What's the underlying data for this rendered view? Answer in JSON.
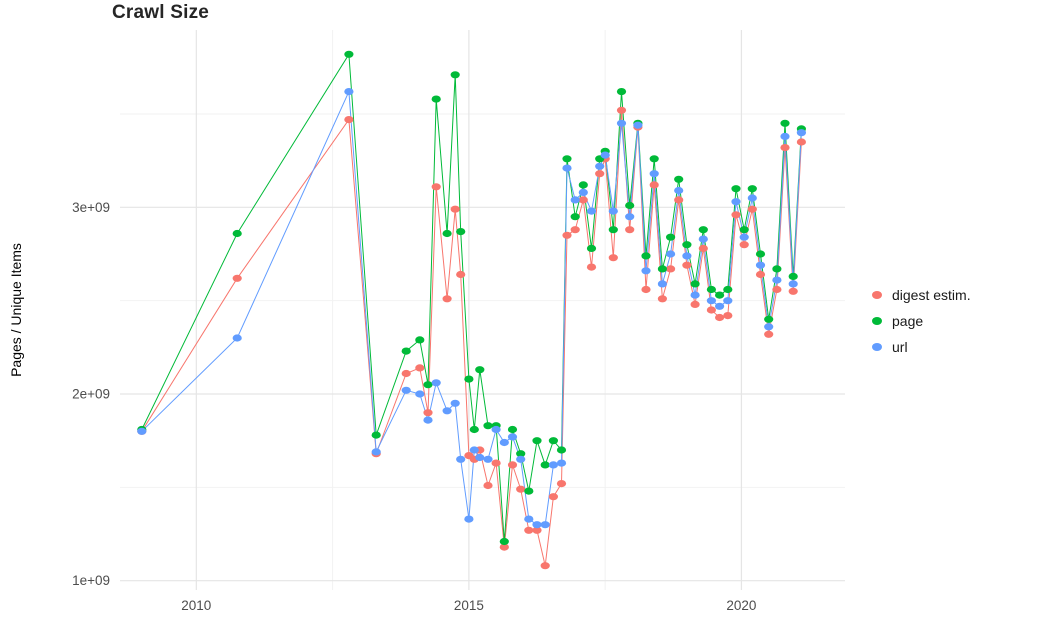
{
  "chart_data": {
    "type": "scatter",
    "title": "Crawl Size",
    "xlabel": "",
    "ylabel": "Pages / Unique Items",
    "legend_position": "right",
    "grid": true,
    "background": "#ffffff",
    "grid_major_color": "#e5e5e5",
    "grid_minor_color": "#f2f2f2",
    "tick_label_color": "#4d4d4d",
    "xlim": [
      2008.6,
      2021.9
    ],
    "ylim": [
      0.95,
      3.95
    ],
    "y_value_scale": "1e9",
    "x_ticks": [
      {
        "value": 2010,
        "label": "2010"
      },
      {
        "value": 2015,
        "label": "2015"
      },
      {
        "value": 2020,
        "label": "2020"
      }
    ],
    "x_minor_ticks": [
      2012.5,
      2017.5
    ],
    "y_ticks": [
      {
        "value": 1,
        "label": "1e+09"
      },
      {
        "value": 2,
        "label": "2e+09"
      },
      {
        "value": 3,
        "label": "3e+09"
      }
    ],
    "y_minor_ticks": [
      1.5,
      2.5,
      3.5
    ],
    "x": [
      2009.0,
      2010.75,
      2012.8,
      2013.3,
      2013.85,
      2014.1,
      2014.25,
      2014.4,
      2014.6,
      2014.75,
      2014.85,
      2015.0,
      2015.1,
      2015.2,
      2015.35,
      2015.5,
      2015.65,
      2015.8,
      2015.95,
      2016.1,
      2016.25,
      2016.4,
      2016.55,
      2016.7,
      2016.8,
      2016.95,
      2017.1,
      2017.25,
      2017.4,
      2017.5,
      2017.65,
      2017.8,
      2017.95,
      2018.1,
      2018.25,
      2018.4,
      2018.55,
      2018.7,
      2018.85,
      2019.0,
      2019.15,
      2019.3,
      2019.45,
      2019.6,
      2019.75,
      2019.9,
      2020.05,
      2020.2,
      2020.35,
      2020.5,
      2020.65,
      2020.8,
      2020.95,
      2021.1
    ],
    "series": [
      {
        "name": "digest estim.",
        "color": "#F8766D",
        "values": [
          1.8,
          2.62,
          3.47,
          1.68,
          2.11,
          2.14,
          1.9,
          3.11,
          2.51,
          2.99,
          2.64,
          1.67,
          1.65,
          1.7,
          1.51,
          1.63,
          1.18,
          1.62,
          1.49,
          1.27,
          1.27,
          1.08,
          1.45,
          1.52,
          2.85,
          2.88,
          3.04,
          2.68,
          3.18,
          3.26,
          2.73,
          3.52,
          2.88,
          3.43,
          2.56,
          3.12,
          2.51,
          2.67,
          3.04,
          2.69,
          2.48,
          2.78,
          2.45,
          2.41,
          2.42,
          2.96,
          2.8,
          2.99,
          2.64,
          2.32,
          2.56,
          3.32,
          2.55,
          3.35
        ]
      },
      {
        "name": "page",
        "color": "#00BA38",
        "values": [
          1.81,
          2.86,
          3.82,
          1.78,
          2.23,
          2.29,
          2.05,
          3.58,
          2.86,
          3.71,
          2.87,
          2.08,
          1.81,
          2.13,
          1.83,
          1.83,
          1.21,
          1.81,
          1.68,
          1.48,
          1.75,
          1.62,
          1.75,
          1.7,
          3.26,
          2.95,
          3.12,
          2.78,
          3.26,
          3.3,
          2.88,
          3.62,
          3.01,
          3.45,
          2.74,
          3.26,
          2.67,
          2.84,
          3.15,
          2.8,
          2.59,
          2.88,
          2.56,
          2.53,
          2.56,
          3.1,
          2.88,
          3.1,
          2.75,
          2.4,
          2.67,
          3.45,
          2.63,
          3.42
        ]
      },
      {
        "name": "url",
        "color": "#619CFF",
        "values": [
          1.8,
          2.3,
          3.62,
          1.69,
          2.02,
          2.0,
          1.86,
          2.06,
          1.91,
          1.95,
          1.65,
          1.33,
          1.7,
          1.66,
          1.65,
          1.81,
          1.74,
          1.77,
          1.65,
          1.33,
          1.3,
          1.3,
          1.62,
          1.63,
          3.21,
          3.04,
          3.08,
          2.98,
          3.22,
          3.28,
          2.98,
          3.45,
          2.95,
          3.44,
          2.66,
          3.18,
          2.59,
          2.75,
          3.09,
          2.74,
          2.53,
          2.83,
          2.5,
          2.47,
          2.5,
          3.03,
          2.84,
          3.05,
          2.69,
          2.36,
          2.61,
          3.38,
          2.59,
          3.4
        ]
      }
    ]
  }
}
